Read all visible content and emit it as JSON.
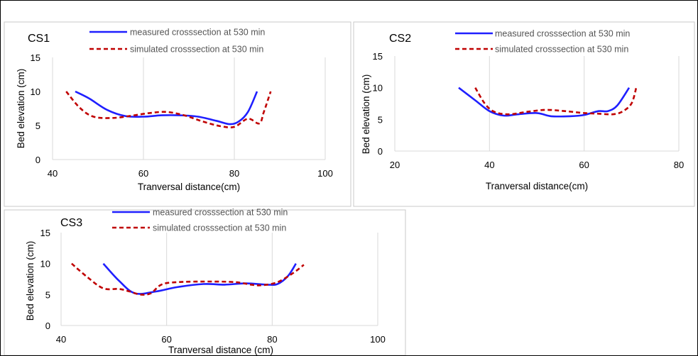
{
  "colors": {
    "measured": "#1f1fff",
    "simulated": "#c00000",
    "grid": "#d9d9d9"
  },
  "chart_data": [
    {
      "id": "cs1",
      "type": "line",
      "title": "CS1",
      "xlabel": "Tranversal distance(cm)",
      "ylabel": "Bed elevation (cm)",
      "xlim": [
        40,
        100
      ],
      "ylim": [
        0,
        15
      ],
      "xticks": [
        40,
        60,
        80,
        100
      ],
      "yticks": [
        0,
        5,
        10,
        15
      ],
      "grid": "vertical",
      "legend": "top",
      "series": [
        {
          "name": "measured crosssection at 530 min",
          "style": "solid",
          "points": [
            [
              45,
              10
            ],
            [
              48,
              9
            ],
            [
              52,
              7.3
            ],
            [
              56,
              6.4
            ],
            [
              60,
              6.3
            ],
            [
              64,
              6.5
            ],
            [
              68,
              6.5
            ],
            [
              72,
              6.3
            ],
            [
              76,
              5.7
            ],
            [
              79,
              5.2
            ],
            [
              81,
              5.6
            ],
            [
              83,
              7
            ],
            [
              85,
              10
            ]
          ]
        },
        {
          "name": "simulated crosssection at 530 min",
          "style": "dashed",
          "points": [
            [
              43,
              10
            ],
            [
              46,
              7.6
            ],
            [
              49,
              6.3
            ],
            [
              53,
              6.1
            ],
            [
              57,
              6.4
            ],
            [
              61,
              6.8
            ],
            [
              65,
              7
            ],
            [
              69,
              6.5
            ],
            [
              73,
              5.6
            ],
            [
              77,
              4.9
            ],
            [
              80,
              4.8
            ],
            [
              83,
              6
            ],
            [
              85.5,
              5.3
            ],
            [
              86.5,
              7
            ],
            [
              88,
              10
            ]
          ]
        }
      ]
    },
    {
      "id": "cs2",
      "type": "line",
      "title": "CS2",
      "xlabel": "Tranversal distance(cm)",
      "ylabel": "Bed elevation (cm)",
      "xlim": [
        20,
        80
      ],
      "ylim": [
        0,
        15
      ],
      "xticks": [
        20,
        40,
        60,
        80
      ],
      "yticks": [
        0,
        5,
        10,
        15
      ],
      "grid": "vertical",
      "legend": "top",
      "series": [
        {
          "name": "measured crosssection at 530 min",
          "style": "solid",
          "points": [
            [
              33.5,
              10
            ],
            [
              37,
              8
            ],
            [
              40,
              6.3
            ],
            [
              43,
              5.6
            ],
            [
              46,
              5.8
            ],
            [
              50,
              6
            ],
            [
              53,
              5.5
            ],
            [
              57,
              5.5
            ],
            [
              60,
              5.7
            ],
            [
              63,
              6.3
            ],
            [
              65,
              6.3
            ],
            [
              67,
              7.2
            ],
            [
              69.5,
              10
            ]
          ]
        },
        {
          "name": "simulated crosssection at 530 min",
          "style": "dashed",
          "points": [
            [
              37,
              10
            ],
            [
              39,
              7.5
            ],
            [
              41,
              6.2
            ],
            [
              44,
              5.8
            ],
            [
              48,
              6.2
            ],
            [
              52,
              6.5
            ],
            [
              56,
              6.3
            ],
            [
              60,
              6
            ],
            [
              63,
              5.9
            ],
            [
              66,
              5.8
            ],
            [
              68,
              6.2
            ],
            [
              70,
              7.5
            ],
            [
              71,
              10
            ]
          ]
        }
      ]
    },
    {
      "id": "cs3",
      "type": "line",
      "title": "CS3",
      "xlabel": "Tranversal distance (cm)",
      "ylabel": "Bed elevation (cm)",
      "xlim": [
        40,
        100
      ],
      "ylim": [
        0,
        15
      ],
      "xticks": [
        40,
        60,
        80,
        100
      ],
      "yticks": [
        0,
        5,
        10,
        15
      ],
      "grid": "vertical",
      "legend": "top",
      "series": [
        {
          "name": "measured crosssection at 530 min",
          "style": "solid",
          "points": [
            [
              48,
              10
            ],
            [
              51,
              7.2
            ],
            [
              54,
              5.2
            ],
            [
              58,
              5.5
            ],
            [
              62,
              6.2
            ],
            [
              67,
              6.7
            ],
            [
              71,
              6.6
            ],
            [
              75,
              6.8
            ],
            [
              79,
              6.6
            ],
            [
              81,
              6.7
            ],
            [
              83,
              8
            ],
            [
              84.5,
              10
            ]
          ]
        },
        {
          "name": "simulated crosssection at 530 min",
          "style": "dashed",
          "points": [
            [
              42,
              10
            ],
            [
              45,
              7.8
            ],
            [
              48,
              6
            ],
            [
              51,
              5.9
            ],
            [
              53,
              5.5
            ],
            [
              55,
              5
            ],
            [
              57,
              5.2
            ],
            [
              59,
              6.6
            ],
            [
              62,
              7
            ],
            [
              68,
              7.1
            ],
            [
              73,
              7
            ],
            [
              76,
              6.6
            ],
            [
              78,
              6.5
            ],
            [
              81,
              7
            ],
            [
              84,
              8.5
            ],
            [
              86,
              9.8
            ]
          ]
        }
      ]
    }
  ]
}
